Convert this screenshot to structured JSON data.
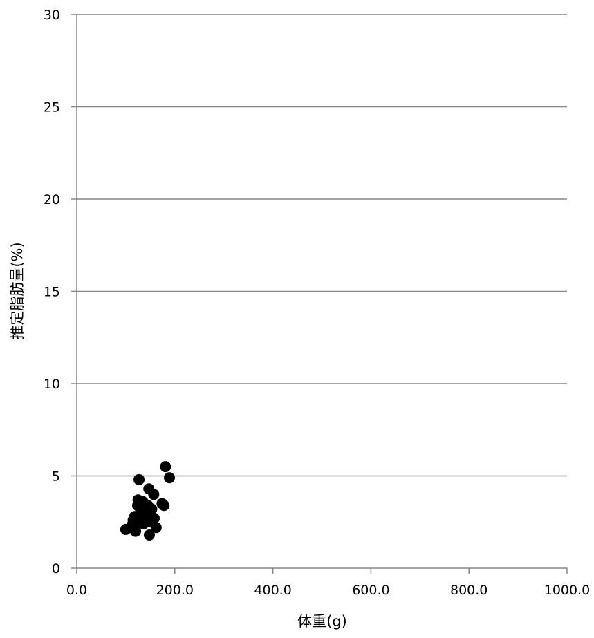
{
  "chart_data": {
    "type": "scatter",
    "title": "",
    "xlabel": "体重(g)",
    "ylabel": "推定脂肪量(%)",
    "xlim": [
      0,
      1000
    ],
    "ylim": [
      0,
      30
    ],
    "xticks": [
      "0.0",
      "200.0",
      "400.0",
      "600.0",
      "800.0",
      "1000.0"
    ],
    "yticks": [
      "0",
      "5",
      "10",
      "15",
      "20",
      "25",
      "30"
    ],
    "grid": "horizontal",
    "point_color": "#000000",
    "series": [
      {
        "points": [
          [
            100,
            2.1
          ],
          [
            112,
            2.3
          ],
          [
            115,
            2.6
          ],
          [
            118,
            2.8
          ],
          [
            120,
            2.0
          ],
          [
            122,
            2.5
          ],
          [
            124,
            3.4
          ],
          [
            125,
            3.7
          ],
          [
            127,
            4.8
          ],
          [
            128,
            2.9
          ],
          [
            130,
            3.2
          ],
          [
            132,
            2.6
          ],
          [
            133,
            3.0
          ],
          [
            135,
            3.6
          ],
          [
            136,
            2.4
          ],
          [
            138,
            3.1
          ],
          [
            140,
            2.8
          ],
          [
            142,
            3.3
          ],
          [
            144,
            2.5
          ],
          [
            145,
            3.4
          ],
          [
            147,
            4.3
          ],
          [
            148,
            1.8
          ],
          [
            150,
            2.9
          ],
          [
            151,
            2.5
          ],
          [
            153,
            3.2
          ],
          [
            155,
            2.7
          ],
          [
            157,
            4.0
          ],
          [
            158,
            2.7
          ],
          [
            162,
            2.2
          ],
          [
            174,
            3.5
          ],
          [
            178,
            3.4
          ],
          [
            181,
            5.5
          ],
          [
            189,
            4.9
          ]
        ]
      }
    ]
  }
}
